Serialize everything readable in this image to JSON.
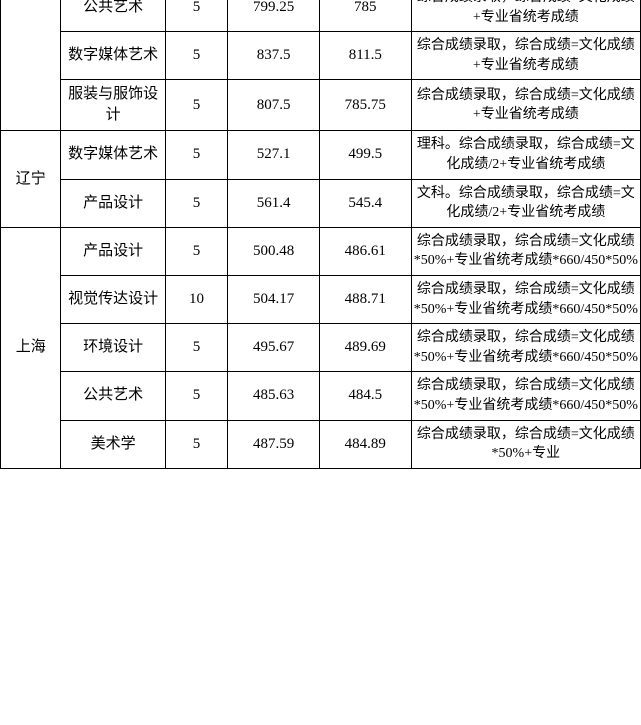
{
  "table": {
    "columns": {
      "widths": [
        58,
        100,
        60,
        88,
        88,
        220
      ],
      "align": "center"
    },
    "border_color": "#000000",
    "background_color": "#ffffff",
    "text_color": "#000000",
    "font_family": "SimSun",
    "cell_fontsize": 15,
    "remark_fontsize": 14,
    "regions": [
      {
        "province": "",
        "province_visible": false,
        "rows": [
          {
            "major": "公共艺术",
            "plan": "5",
            "max": "799.25",
            "min": "785",
            "remark": "综合成绩录取，综合成绩=文化成绩+专业省统考成绩"
          },
          {
            "major": "数字媒体艺术",
            "plan": "5",
            "max": "837.5",
            "min": "811.5",
            "remark": "综合成绩录取，综合成绩=文化成绩+专业省统考成绩"
          },
          {
            "major": "服装与服饰设计",
            "plan": "5",
            "max": "807.5",
            "min": "785.75",
            "remark": "综合成绩录取，综合成绩=文化成绩+专业省统考成绩"
          }
        ]
      },
      {
        "province": "辽宁",
        "province_visible": true,
        "rows": [
          {
            "major": "数字媒体艺术",
            "plan": "5",
            "max": "527.1",
            "min": "499.5",
            "remark": "理科。综合成绩录取，综合成绩=文化成绩/2+专业省统考成绩"
          },
          {
            "major": "产品设计",
            "plan": "5",
            "max": "561.4",
            "min": "545.4",
            "remark": "文科。综合成绩录取，综合成绩=文化成绩/2+专业省统考成绩"
          }
        ]
      },
      {
        "province": "上海",
        "province_visible": true,
        "rows": [
          {
            "major": "产品设计",
            "plan": "5",
            "max": "500.48",
            "min": "486.61",
            "remark": "综合成绩录取，综合成绩=文化成绩*50%+专业省统考成绩*660/450*50%"
          },
          {
            "major": "视觉传达设计",
            "plan": "10",
            "max": "504.17",
            "min": "488.71",
            "remark": "综合成绩录取，综合成绩=文化成绩*50%+专业省统考成绩*660/450*50%"
          },
          {
            "major": "环境设计",
            "plan": "5",
            "max": "495.67",
            "min": "489.69",
            "remark": "综合成绩录取，综合成绩=文化成绩*50%+专业省统考成绩*660/450*50%"
          },
          {
            "major": "公共艺术",
            "plan": "5",
            "max": "485.63",
            "min": "484.5",
            "remark": "综合成绩录取，综合成绩=文化成绩*50%+专业省统考成绩*660/450*50%"
          },
          {
            "major": "美术学",
            "plan": "5",
            "max": "487.59",
            "min": "484.89",
            "remark": "综合成绩录取，综合成绩=文化成绩*50%+专业"
          }
        ]
      }
    ]
  }
}
